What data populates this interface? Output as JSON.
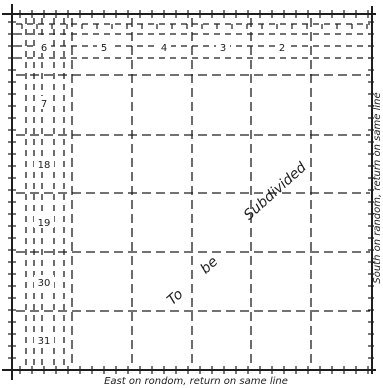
{
  "section_numbers": {
    "top_row": [
      "6",
      "5",
      "4",
      "3",
      "2"
    ],
    "left_column": [
      "7",
      "18",
      "19",
      "30",
      "31"
    ]
  },
  "labels": {
    "to": "To",
    "be": "be",
    "subdivided": "Subdivided",
    "east_note": "East on rondom, return on same line",
    "south_note": "South on random, return on same line"
  },
  "colors": {
    "ink": "#1e1e1e",
    "paper": "#ffffff"
  }
}
